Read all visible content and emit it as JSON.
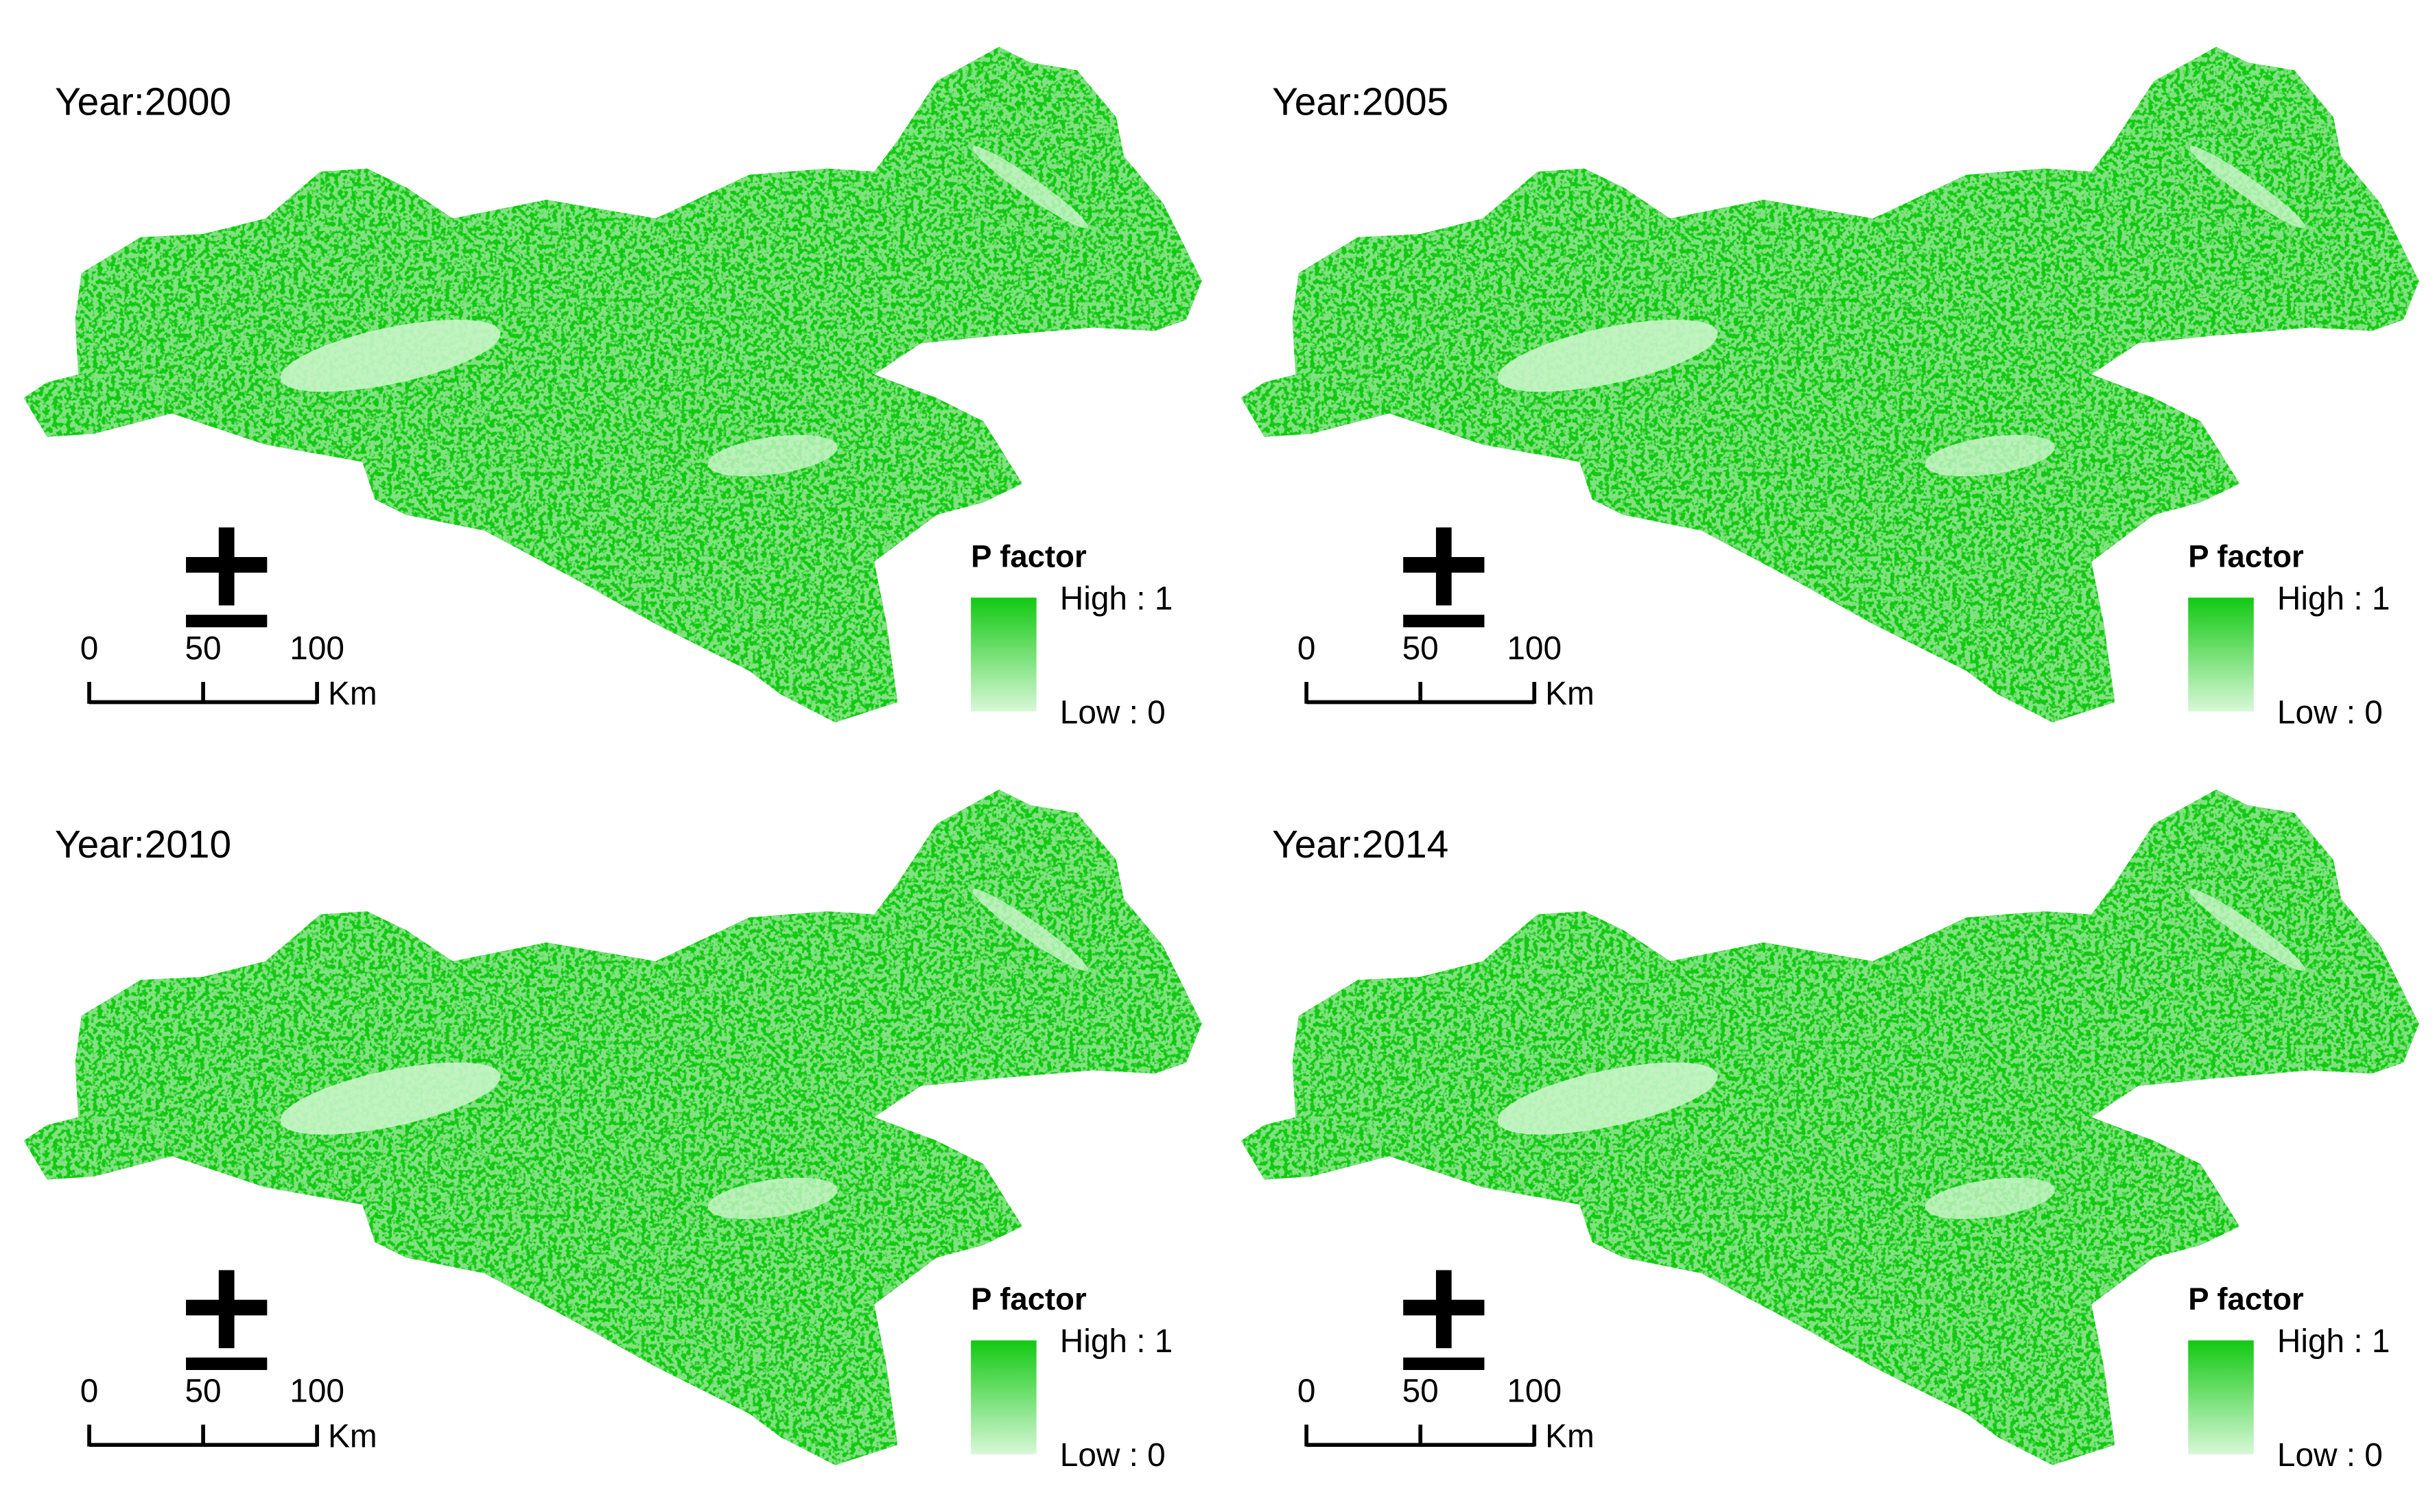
{
  "panels": [
    {
      "title": "Year:2000",
      "legend": {
        "title": "P factor",
        "high": "High : 1",
        "low": "Low : 0"
      },
      "scale": {
        "ticks": [
          "0",
          "50",
          "100"
        ],
        "unit": "Km"
      }
    },
    {
      "title": "Year:2005",
      "legend": {
        "title": "P factor",
        "high": "High : 1",
        "low": "Low : 0"
      },
      "scale": {
        "ticks": [
          "0",
          "50",
          "100"
        ],
        "unit": "Km"
      }
    },
    {
      "title": "Year:2010",
      "legend": {
        "title": "P factor",
        "high": "High : 1",
        "low": "Low : 0"
      },
      "scale": {
        "ticks": [
          "0",
          "50",
          "100"
        ],
        "unit": "Km"
      }
    },
    {
      "title": "Year:2014",
      "legend": {
        "title": "P factor",
        "high": "High : 1",
        "low": "Low : 0"
      },
      "scale": {
        "ticks": [
          "0",
          "50",
          "100"
        ],
        "unit": "Km"
      }
    }
  ]
}
